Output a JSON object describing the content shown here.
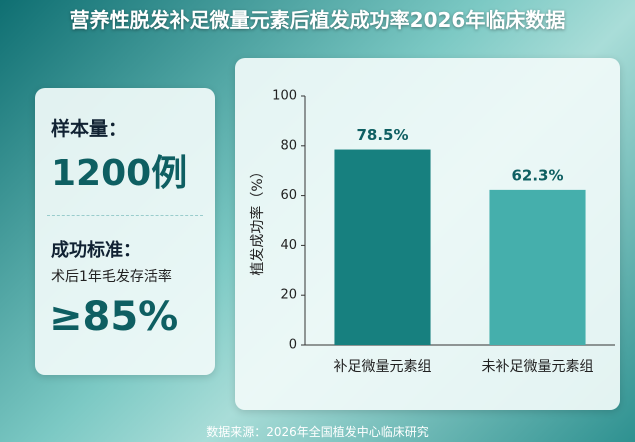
{
  "header": {
    "title": "营养性脱发补足微量元素后植发成功率2026年临床数据"
  },
  "panel": {
    "sample_label": "样本量：",
    "sample_value": "1200例",
    "criteria_label": "成功标准：",
    "criteria_desc": "术后1年毛发存活率",
    "criteria_value": "≥85%"
  },
  "chart_data": {
    "type": "bar",
    "y_label": "植发成功率（%）",
    "categories": [
      "补足微量元素组",
      "未补足微量元素组"
    ],
    "values": [
      78.5,
      62.3
    ],
    "value_labels": [
      "78.5%",
      "62.3%"
    ],
    "colors": [
      "#17807f",
      "#45afac"
    ],
    "ylim": [
      0,
      100
    ],
    "yticks": [
      0,
      20,
      40,
      60,
      80,
      100
    ],
    "grid": false
  },
  "footer": {
    "source": "数据来源：2026年全国植发中心临床研究"
  }
}
